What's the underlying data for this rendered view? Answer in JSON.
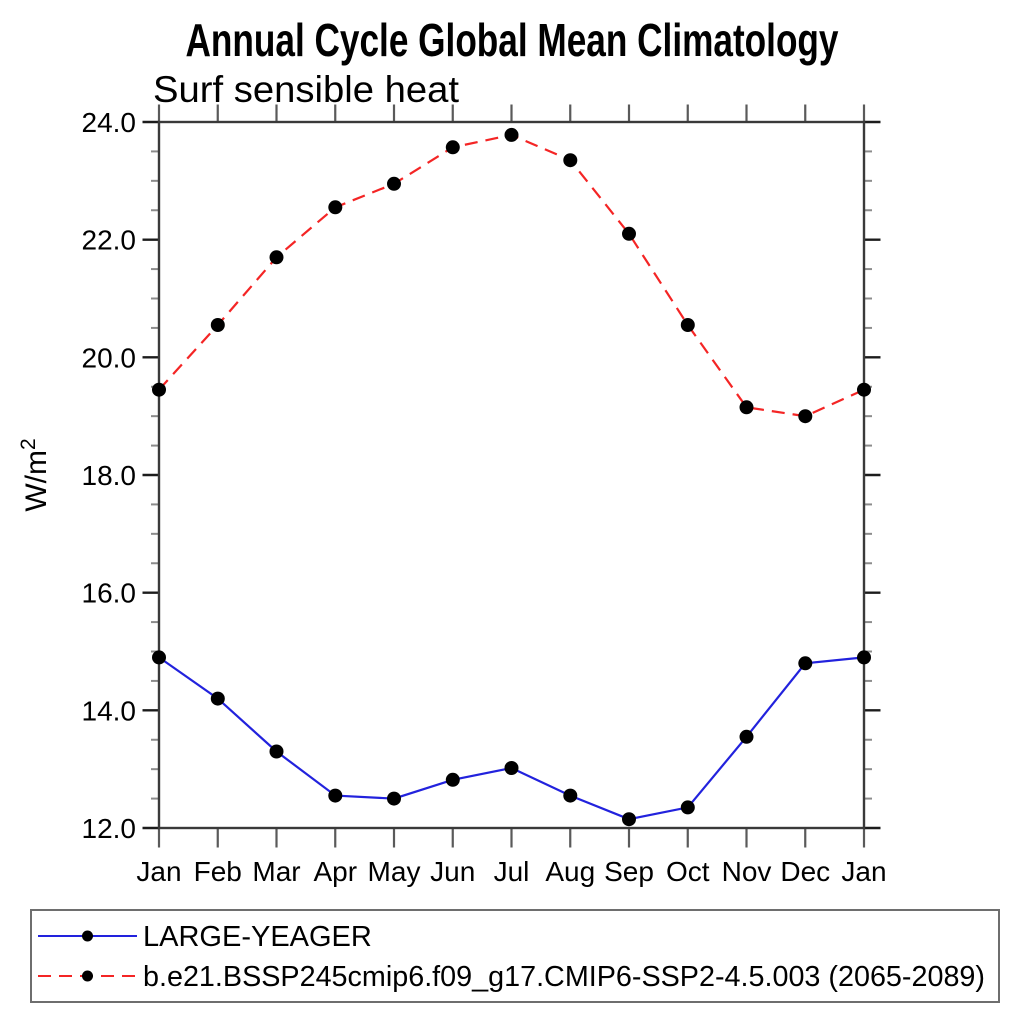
{
  "chart_data": {
    "type": "line",
    "title": "Annual Cycle Global Mean Climatology",
    "subtitle": "Surf sensible heat",
    "ylabel": "W/m2",
    "ylabel_base": "W/m",
    "ylabel_sup": "2",
    "categories": [
      "Jan",
      "Feb",
      "Mar",
      "Apr",
      "May",
      "Jun",
      "Jul",
      "Aug",
      "Sep",
      "Oct",
      "Nov",
      "Dec",
      "Jan"
    ],
    "ylim": [
      12.0,
      24.0
    ],
    "ytick_labels": [
      "24.0",
      "22.0",
      "20.0",
      "18.0",
      "16.0",
      "14.0",
      "12.0"
    ],
    "ytick_major_step": 2.0,
    "ytick_minor_step": 0.5,
    "grid": false,
    "legend": {
      "position": "bottom-left",
      "border": true
    },
    "series": [
      {
        "name": "LARGE-YEAGER",
        "line_color": "#2222dd",
        "line_style": "solid",
        "marker": "filled-circle",
        "marker_color": "#000000",
        "values": [
          14.9,
          14.2,
          13.3,
          12.55,
          12.5,
          12.82,
          13.02,
          12.55,
          12.15,
          12.35,
          13.55,
          14.8,
          14.9
        ]
      },
      {
        "name": "b.e21.BSSP245cmip6.f09_g17.CMIP6-SSP2-4.5.003 (2065-2089)",
        "line_color": "#f42525",
        "line_style": "dashed",
        "marker": "filled-circle",
        "marker_color": "#000000",
        "values": [
          19.45,
          20.55,
          21.7,
          22.55,
          22.95,
          23.57,
          23.78,
          23.35,
          22.1,
          20.55,
          19.15,
          19.0,
          19.45
        ]
      }
    ],
    "colors": {
      "axis_frame": "#3a3a3a",
      "major_tick": "#1c1c1c",
      "minor_tick": "#8c8c8c",
      "month_tick": "#5a5a5a",
      "legend_border": "#6e6e6e",
      "background": "#ffffff"
    }
  }
}
